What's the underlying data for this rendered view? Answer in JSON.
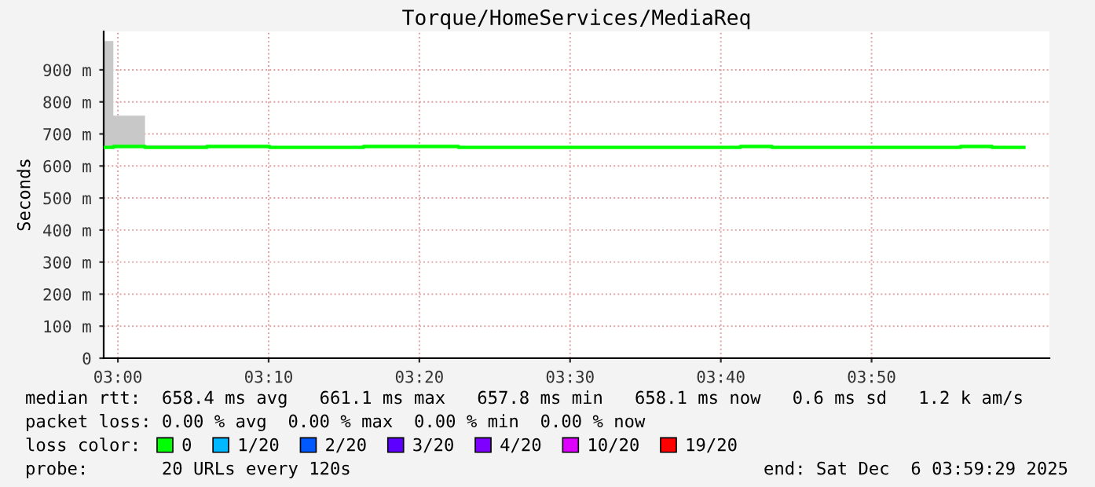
{
  "chart_data": {
    "type": "step",
    "title": "Torque/HomeServices/MediaReq",
    "ylabel": "Seconds",
    "xlim": [
      2.9843,
      4.03
    ],
    "ylim": [
      0,
      1020
    ],
    "xticks": [
      {
        "value": 3.0,
        "label": "03:00"
      },
      {
        "value": 3.16667,
        "label": "03:10"
      },
      {
        "value": 3.33333,
        "label": "03:20"
      },
      {
        "value": 3.5,
        "label": "03:30"
      },
      {
        "value": 3.66667,
        "label": "03:40"
      },
      {
        "value": 3.83333,
        "label": "03:50"
      }
    ],
    "yticks": [
      0,
      {
        "value": 100,
        "label": "100 m"
      },
      {
        "value": 200,
        "label": "200 m"
      },
      {
        "value": 300,
        "label": "300 m"
      },
      {
        "value": 400,
        "label": "400 m"
      },
      {
        "value": 500,
        "label": "500 m"
      },
      {
        "value": 600,
        "label": "600 m"
      },
      {
        "value": 700,
        "label": "700 m"
      },
      {
        "value": 800,
        "label": "800 m"
      },
      {
        "value": 900,
        "label": "900 m"
      }
    ],
    "grid": true,
    "legend": "bottom",
    "legend_title": "loss color:",
    "marker": "none",
    "line_style": "solid",
    "series": [
      {
        "name": "0",
        "color": "#00ff00",
        "x": [
          2.9843,
          2.995,
          3.03,
          3.0983,
          3.1678,
          3.2717,
          3.3767,
          3.6883,
          3.7233,
          3.9317,
          3.9667,
          4.0017
        ],
        "values": [
          658,
          661,
          658,
          661,
          658,
          661,
          658,
          661,
          658,
          661,
          658,
          658
        ]
      },
      {
        "type": "area",
        "color": "#c8c8c8",
        "x": [
          2.9843,
          2.995,
          3.03,
          3.0983
        ],
        "values": [
          990,
          757,
          665,
          665
        ]
      },
      {
        "name": "1/20",
        "color": "#00b8ff"
      },
      {
        "name": "2/20",
        "color": "#0059ff"
      },
      {
        "name": "3/20",
        "color": "#5e00ff"
      },
      {
        "name": "4/20",
        "color": "#7e00ff"
      },
      {
        "name": "10/20",
        "color": "#dd00ff"
      },
      {
        "name": "19/20",
        "color": "#ff0000"
      }
    ],
    "annotations": [
      "median rtt:  658.4 ms avg   661.1 ms max   657.8 ms min   658.1 ms now   0.6 ms sd   1.2 k am/s",
      "packet loss: 0.00 % avg  0.00 % max  0.00 % min  0.00 % now",
      "probe:       20 URLs every 120s",
      "end: Sat Dec  6 03:59:29 2025"
    ]
  }
}
